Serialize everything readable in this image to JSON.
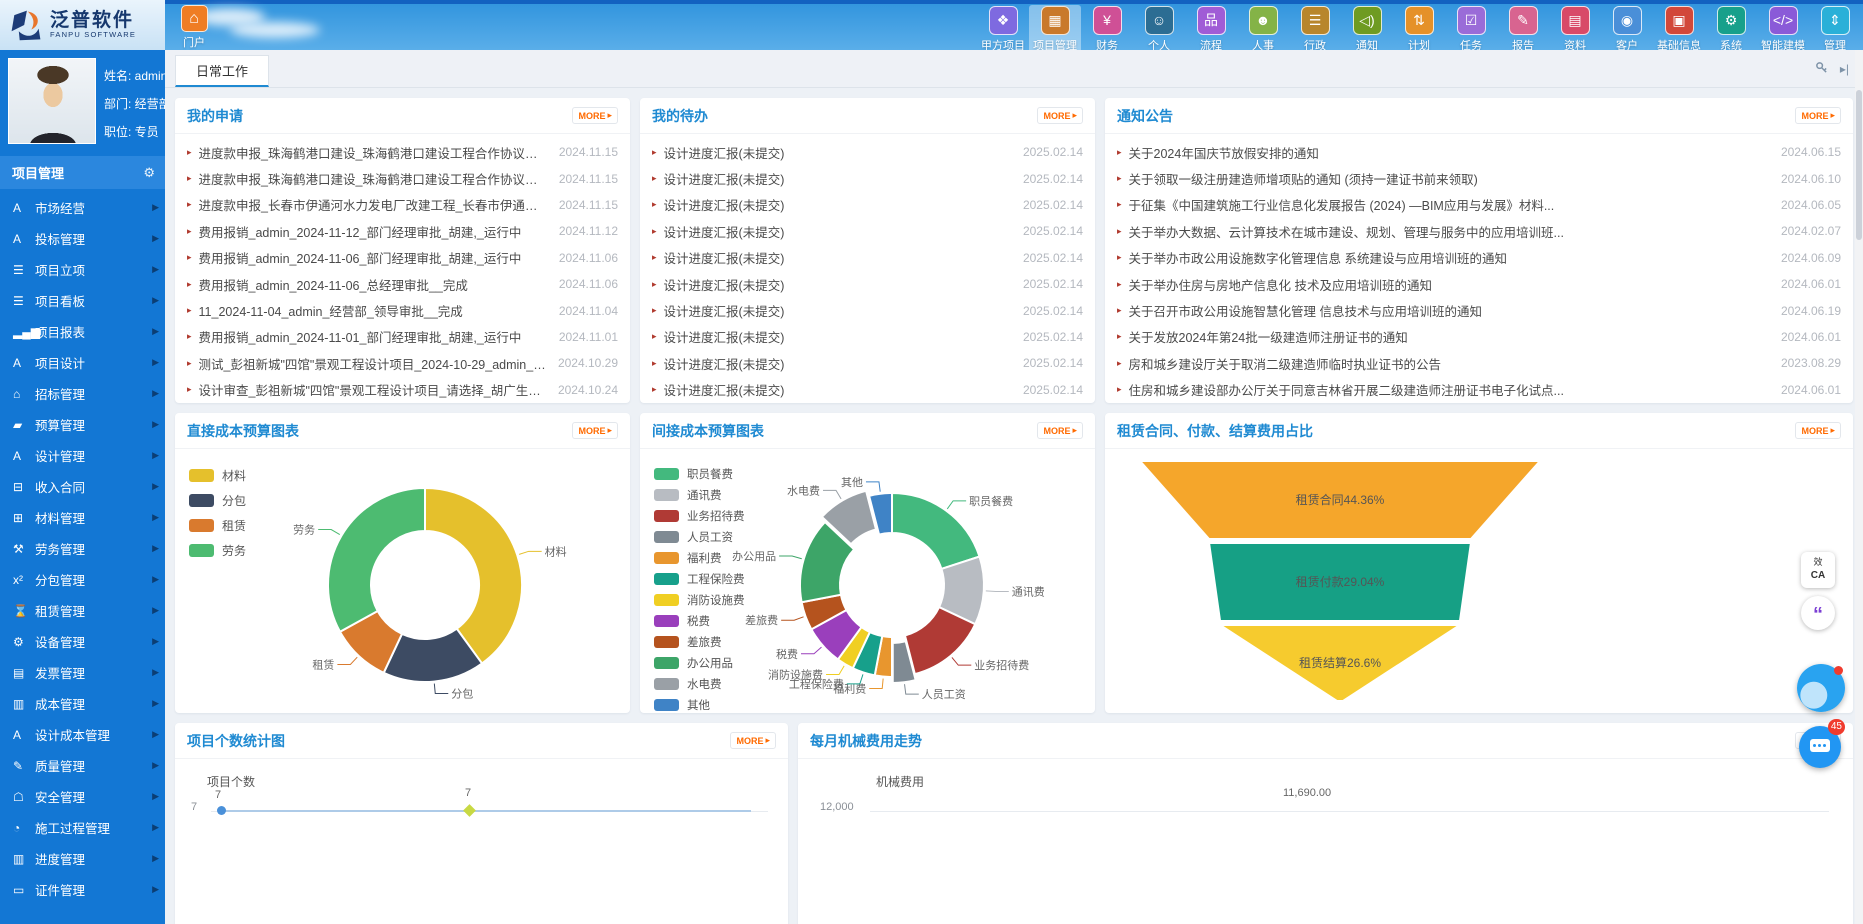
{
  "header": {
    "logo": {
      "title": "泛普软件",
      "subtitle": "FANPU SOFTWARE"
    },
    "portal": {
      "label": "门户",
      "icon_glyph": "⌂"
    },
    "nav": [
      {
        "label": "甲方项目",
        "glyph": "❖",
        "color": "#7e6ae0",
        "active": false
      },
      {
        "label": "项目管理",
        "glyph": "▦",
        "color": "#c9792b",
        "active": true
      },
      {
        "label": "财务",
        "glyph": "¥",
        "color": "#cf5096",
        "active": false
      },
      {
        "label": "个人",
        "glyph": "☺",
        "color": "#2c6d93",
        "active": false
      },
      {
        "label": "流程",
        "glyph": "品",
        "color": "#a05cd6",
        "active": false
      },
      {
        "label": "人事",
        "glyph": "☻",
        "color": "#84b347",
        "active": false
      },
      {
        "label": "行政",
        "glyph": "☰",
        "color": "#b8862c",
        "active": false
      },
      {
        "label": "通知",
        "glyph": "◁)",
        "color": "#6f9b22",
        "active": false
      },
      {
        "label": "计划",
        "glyph": "⇅",
        "color": "#e59129",
        "active": false
      },
      {
        "label": "任务",
        "glyph": "☑",
        "color": "#9a6cd8",
        "active": false
      },
      {
        "label": "报告",
        "glyph": "✎",
        "color": "#d86490",
        "active": false
      },
      {
        "label": "资料",
        "glyph": "▤",
        "color": "#d84a68",
        "active": false
      },
      {
        "label": "客户",
        "glyph": "◉",
        "color": "#4a8fd8",
        "active": false
      },
      {
        "label": "基础信息",
        "glyph": "▣",
        "color": "#d2483a",
        "active": false
      },
      {
        "label": "系统",
        "glyph": "⚙",
        "color": "#17a08b",
        "active": false
      },
      {
        "label": "智能建模",
        "glyph": "</>",
        "color": "#8a5ad8",
        "active": false
      },
      {
        "label": "管理",
        "glyph": "⇕",
        "color": "#2ab0d8",
        "active": false
      }
    ]
  },
  "sidebar": {
    "user": {
      "name_label": "姓名: admin",
      "dept_label": "部门: 经营部",
      "title_label": "职位: 专员"
    },
    "section_title": "项目管理",
    "items": [
      {
        "label": "市场经营",
        "glyph": "A"
      },
      {
        "label": "投标管理",
        "glyph": "A"
      },
      {
        "label": "项目立项",
        "glyph": "☰"
      },
      {
        "label": "项目看板",
        "glyph": "☰"
      },
      {
        "label": "项目报表",
        "glyph": "▂▄▆"
      },
      {
        "label": "项目设计",
        "glyph": "A"
      },
      {
        "label": "招标管理",
        "glyph": "⌂"
      },
      {
        "label": "预算管理",
        "glyph": "▰"
      },
      {
        "label": "设计管理",
        "glyph": "A"
      },
      {
        "label": "收入合同",
        "glyph": "⊟"
      },
      {
        "label": "材料管理",
        "glyph": "⊞"
      },
      {
        "label": "劳务管理",
        "glyph": "⚒"
      },
      {
        "label": "分包管理",
        "glyph": "x²"
      },
      {
        "label": "租赁管理",
        "glyph": "⌛"
      },
      {
        "label": "设备管理",
        "glyph": "⚙"
      },
      {
        "label": "发票管理",
        "glyph": "▤"
      },
      {
        "label": "成本管理",
        "glyph": "▥"
      },
      {
        "label": "设计成本管理",
        "glyph": "A"
      },
      {
        "label": "质量管理",
        "glyph": "✎"
      },
      {
        "label": "安全管理",
        "glyph": "☖"
      },
      {
        "label": "施工过程管理",
        "glyph": "◔"
      },
      {
        "label": "进度管理",
        "glyph": "▥"
      },
      {
        "label": "证件管理",
        "glyph": "▭"
      }
    ]
  },
  "tabs": {
    "active": "日常工作"
  },
  "panels": {
    "applications": {
      "title": "我的申请",
      "more": "MORE",
      "items": [
        {
          "text": "进度款申报_珠海鹤港口建设_珠海鹤港口建设工程合作协议书_admin_...",
          "date": "2024.11.15"
        },
        {
          "text": "进度款申报_珠海鹤港口建设_珠海鹤港口建设工程合作协议书_admin_...",
          "date": "2024.11.15"
        },
        {
          "text": "进度款申报_长春市伊通河水力发电厂改建工程_长春市伊通河水力发电...",
          "date": "2024.11.15"
        },
        {
          "text": "费用报销_admin_2024-11-12_部门经理审批_胡建,_运行中",
          "date": "2024.11.12"
        },
        {
          "text": "费用报销_admin_2024-11-06_部门经理审批_胡建,_运行中",
          "date": "2024.11.06"
        },
        {
          "text": "费用报销_admin_2024-11-06_总经理审批__完成",
          "date": "2024.11.06"
        },
        {
          "text": "11_2024-11-04_admin_经营部_领导审批__完成",
          "date": "2024.11.04"
        },
        {
          "text": "费用报销_admin_2024-11-01_部门经理审批_胡建,_运行中",
          "date": "2024.11.01"
        },
        {
          "text": "测试_彭祖新城\"四馆\"景观工程设计项目_2024-10-29_admin_结束__完成",
          "date": "2024.10.29"
        },
        {
          "text": "设计审查_彭祖新城\"四馆\"景观工程设计项目_请选择_胡广生_2024-10-2...",
          "date": "2024.10.24"
        }
      ]
    },
    "todos": {
      "title": "我的待办",
      "more": "MORE",
      "items": [
        {
          "text": "设计进度汇报(未提交)",
          "date": "2025.02.14"
        },
        {
          "text": "设计进度汇报(未提交)",
          "date": "2025.02.14"
        },
        {
          "text": "设计进度汇报(未提交)",
          "date": "2025.02.14"
        },
        {
          "text": "设计进度汇报(未提交)",
          "date": "2025.02.14"
        },
        {
          "text": "设计进度汇报(未提交)",
          "date": "2025.02.14"
        },
        {
          "text": "设计进度汇报(未提交)",
          "date": "2025.02.14"
        },
        {
          "text": "设计进度汇报(未提交)",
          "date": "2025.02.14"
        },
        {
          "text": "设计进度汇报(未提交)",
          "date": "2025.02.14"
        },
        {
          "text": "设计进度汇报(未提交)",
          "date": "2025.02.14"
        },
        {
          "text": "设计进度汇报(未提交)",
          "date": "2025.02.14"
        }
      ]
    },
    "notices": {
      "title": "通知公告",
      "more": "MORE",
      "items": [
        {
          "text": "关于2024年国庆节放假安排的通知",
          "date": "2024.06.15"
        },
        {
          "text": "关于领取一级注册建造师增项贴的通知 (须持一建证书前来领取)",
          "date": "2024.06.10"
        },
        {
          "text": "于征集《中国建筑施工行业信息化发展报告 (2024) —BIM应用与发展》材料...",
          "date": "2024.06.05"
        },
        {
          "text": "关于举办大数据、云计算技术在城市建设、规划、管理与服务中的应用培训班...",
          "date": "2024.02.07"
        },
        {
          "text": "关于举办市政公用设施数字化管理信息 系统建设与应用培训班的通知",
          "date": "2024.06.09"
        },
        {
          "text": "关于举办住房与房地产信息化 技术及应用培训班的通知",
          "date": "2024.06.01"
        },
        {
          "text": "关于召开市政公用设施智慧化管理 信息技术与应用培训班的通知",
          "date": "2024.06.19"
        },
        {
          "text": "关于发放2024年第24批一级建造师注册证书的通知",
          "date": "2024.06.01"
        },
        {
          "text": "房和城乡建设厅关于取消二级建造师临时执业证书的公告",
          "date": "2023.08.29"
        },
        {
          "text": "住房和城乡建设部办公厅关于同意吉林省开展二级建造师注册证书电子化试点...",
          "date": "2024.06.01"
        }
      ]
    },
    "direct_cost": {
      "title": "直接成本预算图表",
      "more": "MORE"
    },
    "indirect_cost": {
      "title": "间接成本预算图表",
      "more": "MORE"
    },
    "funnel": {
      "title": "租赁合同、付款、结算费用占比",
      "more": "MORE"
    },
    "project_count": {
      "title": "项目个数统计图",
      "more": "MORE"
    },
    "machine_cost": {
      "title": "每月机械费用走势",
      "more": "MORE"
    }
  },
  "chart_data": [
    {
      "id": "direct_cost_donut",
      "type": "pie",
      "donut": true,
      "title": "直接成本预算图表",
      "legend_position": "top-left",
      "slices": [
        {
          "name": "材料",
          "value": 40,
          "color": "#e5c02c"
        },
        {
          "name": "分包",
          "value": 17,
          "color": "#3d4b63"
        },
        {
          "name": "租赁",
          "value": 10,
          "color": "#d97a2e"
        },
        {
          "name": "劳务",
          "value": 33,
          "color": "#4dbb71"
        }
      ]
    },
    {
      "id": "indirect_cost_donut",
      "type": "pie",
      "donut": true,
      "title": "间接成本预算图表",
      "legend_position": "left",
      "slices": [
        {
          "name": "职员餐费",
          "value": 20,
          "color": "#43b97e"
        },
        {
          "name": "通讯费",
          "value": 12,
          "color": "#b8bcc2"
        },
        {
          "name": "业务招待费",
          "value": 14,
          "color": "#b03a35"
        },
        {
          "name": "人员工资",
          "value": 4,
          "color": "#7f8a93",
          "pulled": true
        },
        {
          "name": "福利费",
          "value": 3,
          "color": "#e8962e"
        },
        {
          "name": "工程保险费",
          "value": 4,
          "color": "#17a08b"
        },
        {
          "name": "消防设施费",
          "value": 3,
          "color": "#f0cf23"
        },
        {
          "name": "税费",
          "value": 7,
          "color": "#9a3fbc"
        },
        {
          "name": "差旅费",
          "value": 5,
          "color": "#b5531e"
        },
        {
          "name": "办公用品",
          "value": 15,
          "color": "#3da568"
        },
        {
          "name": "水电费",
          "value": 9,
          "color": "#9aa0a6",
          "pulled": true
        },
        {
          "name": "其他",
          "value": 4,
          "color": "#3f83c6"
        }
      ]
    },
    {
      "id": "rental_funnel",
      "type": "funnel",
      "title": "租赁合同、付款、结算费用占比",
      "segments": [
        {
          "name": "租赁合同",
          "pct": "44.36%",
          "value": 44.36,
          "color": "#f5a62b"
        },
        {
          "name": "租赁付款",
          "pct": "29.04%",
          "value": 29.04,
          "color": "#16a085"
        },
        {
          "name": "租赁结算",
          "pct": "26.6%",
          "value": 26.6,
          "color": "#f6cb2e"
        }
      ]
    },
    {
      "id": "project_count_line",
      "type": "line",
      "title": "项目个数统计图",
      "ylabel": "项目个数",
      "visible_tick": "7",
      "visible_points": [
        "7",
        "7"
      ],
      "marker_colors": [
        "#4a90d9",
        "#c8d943"
      ]
    },
    {
      "id": "machine_cost_line",
      "type": "line",
      "title": "每月机械费用走势",
      "ylabel": "机械费用",
      "visible_tick": "12,000",
      "visible_value_label": "11,690.00"
    }
  ],
  "floating": {
    "ca_label_top": "效",
    "ca_label_bottom": "CA",
    "service_glyph": "“",
    "message_badge": "45"
  }
}
